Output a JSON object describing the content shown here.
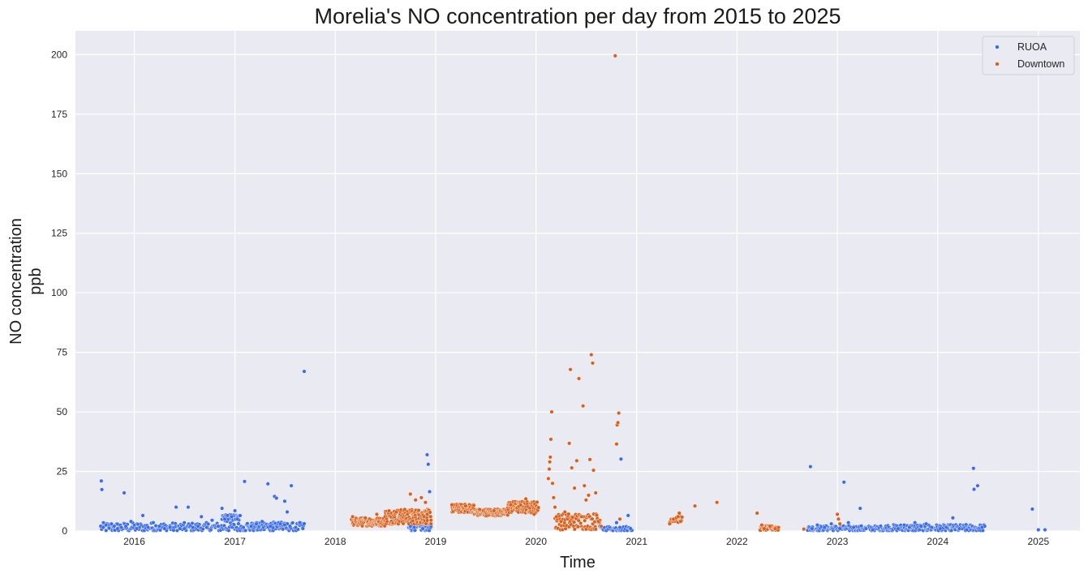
{
  "chart_data": {
    "type": "scatter",
    "title": "Morelia's NO concentration per day from 2015 to 2025",
    "xlabel": "Time",
    "ylabel": [
      "NO concentration",
      "ppb"
    ],
    "xaxis": "date",
    "xlim": [
      "2015-06-01",
      "2025-06-01"
    ],
    "ylim": [
      0,
      210
    ],
    "x_ticks": [
      "2016",
      "2017",
      "2018",
      "2019",
      "2020",
      "2021",
      "2022",
      "2023",
      "2024",
      "2025"
    ],
    "y_ticks": [
      0,
      25,
      50,
      75,
      100,
      125,
      150,
      175,
      200
    ],
    "grid": true,
    "legend_position": "top-right",
    "series": [
      {
        "name": "RUOA",
        "color": "#3a6be8",
        "points": [
          [
            "2015-09-01",
            2.0
          ],
          [
            "2015-09-03",
            21.0
          ],
          [
            "2015-09-05",
            17.4
          ],
          [
            "2015-09-10",
            1.5
          ],
          [
            "2015-09-20",
            2.5
          ],
          [
            "2015-10-01",
            1.2
          ],
          [
            "2015-10-10",
            3.0
          ],
          [
            "2015-10-20",
            2.0
          ],
          [
            "2015-11-01",
            1.0
          ],
          [
            "2015-11-15",
            1.5
          ],
          [
            "2015-11-25",
            16.0
          ],
          [
            "2015-12-01",
            2.0
          ],
          [
            "2015-12-20",
            4.0
          ],
          [
            "2016-01-10",
            1.0
          ],
          [
            "2016-02-01",
            6.5
          ],
          [
            "2016-02-20",
            1.5
          ],
          [
            "2016-03-10",
            3.5
          ],
          [
            "2016-04-01",
            2.0
          ],
          [
            "2016-04-20",
            1.0
          ],
          [
            "2016-05-10",
            1.5
          ],
          [
            "2016-06-01",
            10.0
          ],
          [
            "2016-06-15",
            1.0
          ],
          [
            "2016-07-01",
            1.0
          ],
          [
            "2016-07-15",
            10.0
          ],
          [
            "2016-08-01",
            1.5
          ],
          [
            "2016-08-20",
            2.0
          ],
          [
            "2016-09-01",
            6.0
          ],
          [
            "2016-09-20",
            1.5
          ],
          [
            "2016-10-10",
            4.5
          ],
          [
            "2016-11-01",
            2.0
          ],
          [
            "2016-11-15",
            9.5
          ],
          [
            "2016-11-25",
            5.0
          ],
          [
            "2016-12-05",
            6.5
          ],
          [
            "2016-12-20",
            6.0
          ],
          [
            "2017-01-01",
            8.5
          ],
          [
            "2017-01-10",
            5.0
          ],
          [
            "2017-02-01",
            1.5
          ],
          [
            "2017-02-05",
            20.8
          ],
          [
            "2017-03-01",
            2.0
          ],
          [
            "2017-03-20",
            3.0
          ],
          [
            "2017-04-10",
            4.0
          ],
          [
            "2017-05-01",
            19.8
          ],
          [
            "2017-05-10",
            2.0
          ],
          [
            "2017-05-25",
            14.5
          ],
          [
            "2017-06-01",
            13.8
          ],
          [
            "2017-06-15",
            3.0
          ],
          [
            "2017-07-01",
            12.5
          ],
          [
            "2017-07-10",
            8.0
          ],
          [
            "2017-07-20",
            2.0
          ],
          [
            "2017-07-25",
            19.0
          ],
          [
            "2017-08-10",
            1.5
          ],
          [
            "2017-08-25",
            3.5
          ],
          [
            "2017-09-10",
            67.0
          ],
          [
            "2017-09-05",
            1.0
          ],
          [
            "2018-10-01",
            2.0
          ],
          [
            "2018-10-15",
            1.5
          ],
          [
            "2018-11-01",
            3.0
          ],
          [
            "2018-11-15",
            1.0
          ],
          [
            "2018-12-01",
            32.0
          ],
          [
            "2018-12-05",
            28.0
          ],
          [
            "2018-12-10",
            16.5
          ],
          [
            "2020-10-20",
            3.5
          ],
          [
            "2020-11-01",
            1.5
          ],
          [
            "2020-11-05",
            30.2
          ],
          [
            "2020-12-01",
            6.5
          ],
          [
            "2020-12-10",
            1.0
          ],
          [
            "2022-09-25",
            27.0
          ],
          [
            "2022-10-01",
            1.0
          ],
          [
            "2022-10-20",
            2.5
          ],
          [
            "2022-11-15",
            1.5
          ],
          [
            "2022-12-10",
            3.0
          ],
          [
            "2023-01-10",
            1.0
          ],
          [
            "2023-01-25",
            20.5
          ],
          [
            "2023-02-10",
            3.5
          ],
          [
            "2023-03-01",
            1.5
          ],
          [
            "2023-03-25",
            9.5
          ],
          [
            "2023-04-15",
            1.0
          ],
          [
            "2023-05-10",
            0.5
          ],
          [
            "2023-08-10",
            1.0
          ],
          [
            "2023-09-01",
            2.5
          ],
          [
            "2023-09-20",
            1.5
          ],
          [
            "2023-10-10",
            3.5
          ],
          [
            "2023-11-01",
            2.0
          ],
          [
            "2023-11-20",
            3.0
          ],
          [
            "2023-12-10",
            1.5
          ],
          [
            "2024-01-10",
            1.0
          ],
          [
            "2024-02-01",
            1.5
          ],
          [
            "2024-02-25",
            5.5
          ],
          [
            "2024-03-20",
            1.0
          ],
          [
            "2024-04-15",
            0.5
          ],
          [
            "2024-05-10",
            26.3
          ],
          [
            "2024-05-12",
            17.5
          ],
          [
            "2024-05-25",
            19.0
          ],
          [
            "2024-06-10",
            1.5
          ],
          [
            "2024-12-10",
            9.2
          ],
          [
            "2025-01-01",
            0.5
          ],
          [
            "2025-01-25",
            0.5
          ]
        ],
        "bands": [
          {
            "start": "2015-09-01",
            "end": "2017-09-10",
            "base": 1.5,
            "spread": 2.0,
            "count": 230
          },
          {
            "start": "2016-11-15",
            "end": "2017-01-20",
            "base": 5.5,
            "spread": 1.5,
            "count": 30
          },
          {
            "start": "2017-02-15",
            "end": "2017-07-01",
            "base": 2.5,
            "spread": 1.2,
            "count": 45
          },
          {
            "start": "2018-09-25",
            "end": "2018-12-15",
            "base": 1.5,
            "spread": 1.5,
            "count": 40
          },
          {
            "start": "2020-08-20",
            "end": "2020-12-15",
            "base": 1.0,
            "spread": 1.0,
            "count": 35
          },
          {
            "start": "2022-09-15",
            "end": "2023-06-15",
            "base": 1.0,
            "spread": 1.2,
            "count": 110
          },
          {
            "start": "2023-06-15",
            "end": "2024-06-20",
            "base": 1.2,
            "spread": 1.5,
            "count": 160
          }
        ]
      },
      {
        "name": "Downtown",
        "color": "#d9601b",
        "points": [
          [
            "2018-03-05",
            6.0
          ],
          [
            "2018-04-20",
            5.5
          ],
          [
            "2018-06-01",
            7.0
          ],
          [
            "2018-08-10",
            8.0
          ],
          [
            "2018-10-01",
            15.5
          ],
          [
            "2018-10-20",
            13.0
          ],
          [
            "2018-11-10",
            14.0
          ],
          [
            "2018-11-25",
            12.0
          ],
          [
            "2018-12-01",
            7.0
          ],
          [
            "2018-12-15",
            3.0
          ],
          [
            "2019-03-01",
            11.0
          ],
          [
            "2019-04-20",
            10.5
          ],
          [
            "2019-06-10",
            9.0
          ],
          [
            "2019-08-01",
            8.5
          ],
          [
            "2019-10-01",
            11.0
          ],
          [
            "2019-11-25",
            13.5
          ],
          [
            "2019-12-25",
            7.0
          ],
          [
            "2020-02-15",
            22.0
          ],
          [
            "2020-02-18",
            26.0
          ],
          [
            "2020-02-20",
            29.0
          ],
          [
            "2020-02-22",
            31.0
          ],
          [
            "2020-02-24",
            38.5
          ],
          [
            "2020-02-27",
            50.0
          ],
          [
            "2020-03-01",
            20.0
          ],
          [
            "2020-03-05",
            14.0
          ],
          [
            "2020-03-10",
            10.0
          ],
          [
            "2020-03-15",
            6.0
          ],
          [
            "2020-04-01",
            4.0
          ],
          [
            "2020-04-15",
            8.0
          ],
          [
            "2020-05-01",
            36.8
          ],
          [
            "2020-05-05",
            67.8
          ],
          [
            "2020-05-10",
            26.5
          ],
          [
            "2020-05-20",
            18.0
          ],
          [
            "2020-05-28",
            29.5
          ],
          [
            "2020-06-05",
            64.0
          ],
          [
            "2020-06-15",
            6.0
          ],
          [
            "2020-06-20",
            52.5
          ],
          [
            "2020-06-25",
            19.0
          ],
          [
            "2020-07-01",
            13.0
          ],
          [
            "2020-07-10",
            15.0
          ],
          [
            "2020-07-15",
            30.0
          ],
          [
            "2020-07-20",
            74.0
          ],
          [
            "2020-07-25",
            70.5
          ],
          [
            "2020-07-28",
            25.5
          ],
          [
            "2020-08-05",
            16.0
          ],
          [
            "2020-08-15",
            4.0
          ],
          [
            "2020-08-25",
            2.0
          ],
          [
            "2020-10-15",
            199.5
          ],
          [
            "2020-10-20",
            36.5
          ],
          [
            "2020-10-22",
            44.5
          ],
          [
            "2020-10-25",
            45.5
          ],
          [
            "2020-10-28",
            49.5
          ],
          [
            "2020-11-01",
            5.0
          ],
          [
            "2021-05-01",
            3.0
          ],
          [
            "2021-05-15",
            5.0
          ],
          [
            "2021-05-25",
            5.5
          ],
          [
            "2021-06-01",
            6.0
          ],
          [
            "2021-06-05",
            7.5
          ],
          [
            "2021-06-10",
            4.0
          ],
          [
            "2021-08-01",
            10.5
          ],
          [
            "2021-10-20",
            12.0
          ],
          [
            "2022-03-15",
            7.5
          ],
          [
            "2022-04-01",
            2.5
          ],
          [
            "2022-04-10",
            1.0
          ],
          [
            "2022-05-01",
            2.0
          ],
          [
            "2022-05-20",
            1.0
          ],
          [
            "2022-09-01",
            0.8
          ],
          [
            "2023-01-01",
            7.0
          ],
          [
            "2023-01-05",
            5.0
          ],
          [
            "2023-01-10",
            3.0
          ]
        ],
        "bands": [
          {
            "start": "2018-03-01",
            "end": "2018-07-01",
            "base": 3.8,
            "spread": 1.8,
            "count": 110
          },
          {
            "start": "2018-07-01",
            "end": "2018-12-15",
            "base": 6.0,
            "spread": 3.2,
            "count": 150
          },
          {
            "start": "2019-03-01",
            "end": "2019-05-20",
            "base": 9.5,
            "spread": 1.8,
            "count": 70
          },
          {
            "start": "2019-05-20",
            "end": "2019-09-20",
            "base": 7.8,
            "spread": 1.5,
            "count": 110
          },
          {
            "start": "2019-09-20",
            "end": "2020-01-10",
            "base": 10.0,
            "spread": 2.5,
            "count": 90
          },
          {
            "start": "2020-03-10",
            "end": "2020-08-20",
            "base": 4.0,
            "spread": 3.5,
            "count": 90
          },
          {
            "start": "2021-05-01",
            "end": "2021-06-15",
            "base": 5.0,
            "spread": 1.5,
            "count": 20
          },
          {
            "start": "2022-03-25",
            "end": "2022-06-01",
            "base": 1.2,
            "spread": 1.0,
            "count": 40
          }
        ]
      }
    ]
  }
}
